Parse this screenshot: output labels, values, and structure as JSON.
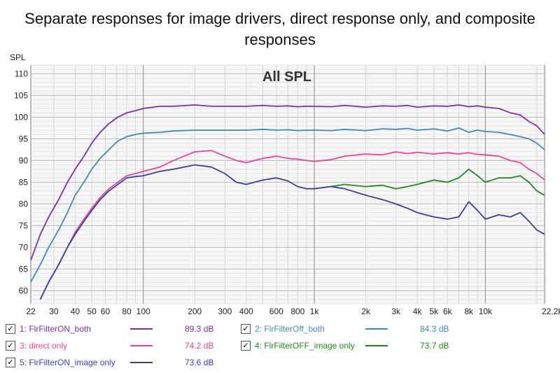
{
  "chart_data": {
    "type": "line",
    "title": "Separate responses for image drivers, direct response only, and composite responses",
    "subtitle": "All SPL",
    "ylabel": "SPL",
    "xlabel": "",
    "x_scale": "log",
    "xlim": [
      22,
      22200
    ],
    "ylim": [
      57,
      112
    ],
    "grid": true,
    "x_tick_labels": [
      {
        "value": 22,
        "label": "22"
      },
      {
        "value": 30,
        "label": "30"
      },
      {
        "value": 40,
        "label": "40"
      },
      {
        "value": 50,
        "label": "50"
      },
      {
        "value": 60,
        "label": "60"
      },
      {
        "value": 80,
        "label": "80"
      },
      {
        "value": 100,
        "label": "100"
      },
      {
        "value": 200,
        "label": "200"
      },
      {
        "value": 300,
        "label": "300"
      },
      {
        "value": 400,
        "label": "400"
      },
      {
        "value": 600,
        "label": "600"
      },
      {
        "value": 800,
        "label": "800"
      },
      {
        "value": 1000,
        "label": "1k"
      },
      {
        "value": 2000,
        "label": "2k"
      },
      {
        "value": 3000,
        "label": "3k"
      },
      {
        "value": 4000,
        "label": "4k"
      },
      {
        "value": 5000,
        "label": "5k"
      },
      {
        "value": 6000,
        "label": "6k"
      },
      {
        "value": 8000,
        "label": "8k"
      },
      {
        "value": 10000,
        "label": "10k"
      },
      {
        "value": 22200,
        "label": "22.2kHz"
      }
    ],
    "y_ticks": [
      60,
      65,
      70,
      75,
      80,
      85,
      90,
      95,
      100,
      105,
      110
    ],
    "x": [
      22,
      25,
      28,
      32,
      36,
      40,
      45,
      50,
      56,
      63,
      71,
      80,
      90,
      100,
      125,
      150,
      200,
      250,
      300,
      350,
      400,
      500,
      600,
      700,
      800,
      900,
      1000,
      1250,
      1500,
      2000,
      2500,
      3000,
      3500,
      4000,
      5000,
      6000,
      7000,
      8000,
      9000,
      10000,
      12000,
      14000,
      16000,
      18000,
      20000,
      22200
    ],
    "series": [
      {
        "name": "1: FlrFilterON_both",
        "color": "#7b2fa8",
        "level": "89.3 dB",
        "values": [
          67,
          73,
          77,
          81,
          85,
          88,
          91,
          94,
          96.5,
          98.5,
          100,
          101,
          101.5,
          102,
          102.5,
          102.5,
          102.8,
          102.5,
          102.5,
          102.5,
          102.5,
          102.7,
          102.5,
          102.6,
          102.4,
          102.5,
          102.5,
          102.4,
          102.7,
          102.3,
          102.6,
          102.5,
          102.7,
          102.3,
          102.6,
          102.5,
          102.8,
          102.4,
          102.6,
          102.3,
          102,
          101,
          100.5,
          99,
          98,
          96
        ]
      },
      {
        "name": "2: FlrFilterOff_both",
        "color": "#3a8db8",
        "level": "84.3 dB",
        "values": [
          62,
          66,
          70,
          74,
          78,
          82,
          85,
          88,
          90.5,
          92.5,
          94.5,
          95.5,
          96,
          96.3,
          96.5,
          96.8,
          97,
          97,
          97,
          97,
          97,
          97.2,
          97,
          97.1,
          96.9,
          97,
          97,
          96.9,
          97.2,
          96.9,
          97.3,
          97.2,
          97.4,
          97,
          97.3,
          96.8,
          97.5,
          96.5,
          97,
          96.7,
          96.5,
          96,
          95.5,
          95,
          94,
          92.5
        ]
      },
      {
        "name": "3: direct only",
        "color": "#e8469e",
        "level": "74.2 dB",
        "values": [
          null,
          58,
          62,
          66,
          70,
          73.5,
          76.5,
          79,
          81.5,
          83.5,
          85,
          86.5,
          87,
          87.5,
          88.5,
          90,
          92,
          92.3,
          91,
          90,
          89.5,
          90.5,
          91,
          90.5,
          90.3,
          90,
          89.8,
          90.2,
          91,
          91.5,
          91.3,
          92,
          91.6,
          91.9,
          91.5,
          91.8,
          91.5,
          91.8,
          91.4,
          91.3,
          91,
          90,
          89.5,
          88,
          87,
          85.5
        ]
      },
      {
        "name": "4: FlrFilterOFF_image only",
        "color": "#1f8a1f",
        "level": "73.7 dB",
        "values": [
          null,
          null,
          null,
          null,
          null,
          null,
          null,
          null,
          null,
          null,
          null,
          null,
          null,
          null,
          null,
          null,
          null,
          null,
          null,
          null,
          null,
          null,
          null,
          null,
          null,
          null,
          null,
          84,
          84.5,
          84,
          84.3,
          83.5,
          84,
          84.5,
          85.5,
          85,
          86,
          88,
          86.5,
          85,
          86,
          86,
          86.5,
          85,
          83,
          82
        ]
      },
      {
        "name": "5: FlrFilterON_image only",
        "color": "#3b3f9c",
        "level": "73.6 dB",
        "values": [
          null,
          58,
          62,
          66,
          70,
          73,
          76,
          78.5,
          81,
          83,
          84.5,
          86,
          86.3,
          86.5,
          87.5,
          88,
          89,
          88.5,
          87,
          85,
          84.5,
          85.5,
          86,
          85.3,
          84,
          83.5,
          83.5,
          84,
          83.5,
          82,
          81,
          80,
          79,
          78,
          77,
          76.5,
          77,
          80.5,
          78.5,
          76.5,
          77.5,
          77,
          78,
          76,
          74,
          73
        ]
      }
    ]
  },
  "legend": {
    "checkbox_mark": "✓",
    "items": [
      {
        "label": "1: FlrFilterON_both",
        "value": "89.3 dB",
        "color": "#7b2fa8"
      },
      {
        "label": "2: FlrFilterOff_both",
        "value": "84.3 dB",
        "color": "#3a8db8"
      },
      {
        "label": "3: direct only",
        "value": "74.2 dB",
        "color": "#e8469e"
      },
      {
        "label": "4: FlrFilterOFF_image only",
        "value": "73.7 dB",
        "color": "#1f8a1f"
      },
      {
        "label": "5: FlrFilterON_image only",
        "value": "73.6 dB",
        "color": "#3b3f9c"
      }
    ]
  }
}
